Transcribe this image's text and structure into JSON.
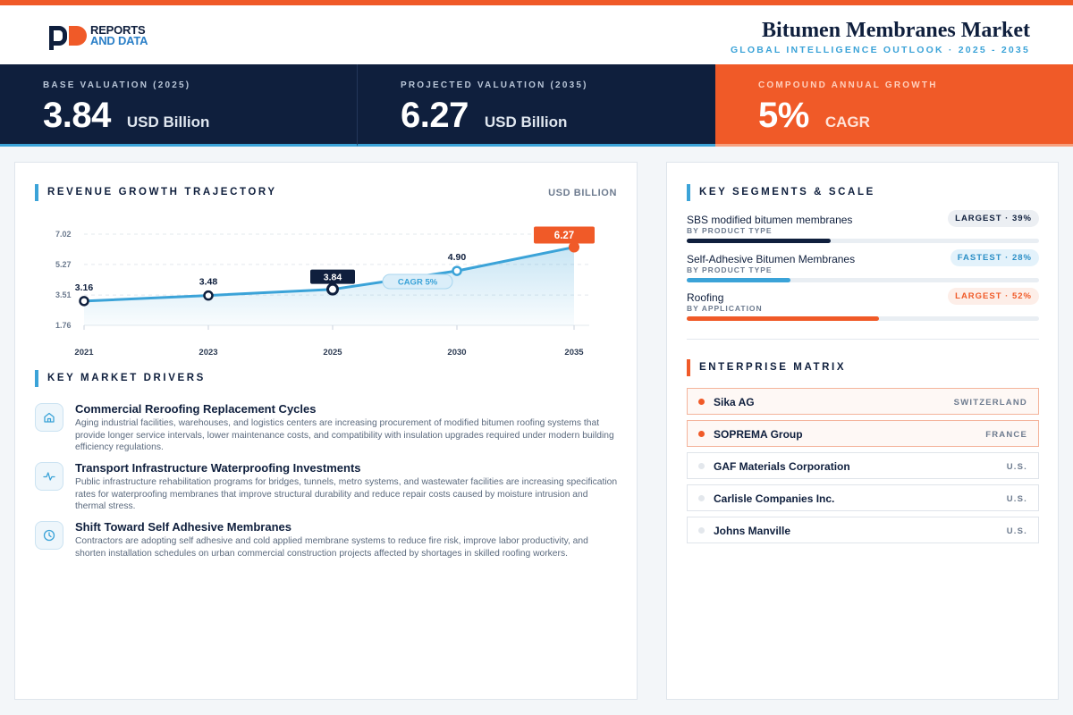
{
  "brand": {
    "line1": "REPORTS",
    "line2": "AND DATA"
  },
  "header": {
    "title": "Bitumen Membranes Market",
    "subtitle": "GLOBAL INTELLIGENCE OUTLOOK  ·  2025 - 2035"
  },
  "kpis": [
    {
      "label": "BASE VALUATION (2025)",
      "value": "3.84",
      "unit": "USD Billion"
    },
    {
      "label": "PROJECTED VALUATION (2035)",
      "value": "6.27",
      "unit": "USD Billion"
    },
    {
      "label": "COMPOUND ANNUAL GROWTH",
      "value": "5%",
      "unit": "CAGR"
    }
  ],
  "colors": {
    "navy": "#0f1f3d",
    "orange": "#f05a28",
    "blue": "#3ba3d8"
  },
  "chart_section": {
    "title": "REVENUE GROWTH TRAJECTORY",
    "unit": "USD BILLION",
    "cagr_pill": "CAGR 5%"
  },
  "chart_data": {
    "type": "area",
    "x": [
      "2021",
      "2023",
      "2025",
      "2030",
      "2035"
    ],
    "series": [
      {
        "values": [
          3.16,
          3.48,
          3.84,
          4.9,
          6.27
        ]
      }
    ],
    "data_labels": [
      "3.16",
      "3.48",
      "3.84",
      "4.90",
      "6.27"
    ],
    "y_ticks": [
      "7.02",
      "5.27",
      "3.51",
      "1.76"
    ],
    "ylim": [
      1.76,
      7.02
    ],
    "grid": true,
    "title": "",
    "xlabel": "",
    "ylabel": ""
  },
  "drivers_section": {
    "title": "KEY MARKET DRIVERS"
  },
  "drivers": [
    {
      "icon": "home-icon",
      "title": "Commercial Reroofing Replacement Cycles",
      "text": "Aging industrial facilities, warehouses, and logistics centers are increasing procurement of modified bitumen roofing systems that provide longer service intervals, lower maintenance costs, and compatibility with insulation upgrades required under modern building efficiency regulations."
    },
    {
      "icon": "activity-icon",
      "title": "Transport Infrastructure Waterproofing Investments",
      "text": "Public infrastructure rehabilitation programs for bridges, tunnels, metro systems, and wastewater facilities are increasing specification rates for waterproofing membranes that improve structural durability and reduce repair costs caused by moisture intrusion and thermal stress."
    },
    {
      "icon": "clock-icon",
      "title": "Shift Toward Self Adhesive Membranes",
      "text": "Contractors are adopting self adhesive and cold applied membrane systems to reduce fire risk, improve labor productivity, and shorten installation schedules on urban commercial construction projects affected by shortages in skilled roofing workers."
    }
  ],
  "segments_section": {
    "title": "KEY SEGMENTS & SCALE"
  },
  "segments": [
    {
      "name": "SBS modified bitumen membranes",
      "category": "BY PRODUCT TYPE",
      "badge": "LARGEST · 39%",
      "share": 39,
      "color": "#0f1f3d"
    },
    {
      "name": "Self-Adhesive Bitumen Membranes",
      "category": "BY PRODUCT TYPE",
      "badge": "FASTEST · 28%",
      "share": 28,
      "color": "#3ba3d8"
    },
    {
      "name": "Roofing",
      "category": "BY APPLICATION",
      "badge": "LARGEST · 52%",
      "share": 52,
      "color": "#f05a28"
    }
  ],
  "enterprise_section": {
    "title": "ENTERPRISE MATRIX"
  },
  "enterprises": [
    {
      "name": "Sika AG",
      "country": "SWITZERLAND",
      "highlight": true
    },
    {
      "name": "SOPREMA Group",
      "country": "FRANCE",
      "highlight": true
    },
    {
      "name": "GAF Materials Corporation",
      "country": "U.S.",
      "highlight": false
    },
    {
      "name": "Carlisle Companies Inc.",
      "country": "U.S.",
      "highlight": false
    },
    {
      "name": "Johns Manville",
      "country": "U.S.",
      "highlight": false
    }
  ]
}
